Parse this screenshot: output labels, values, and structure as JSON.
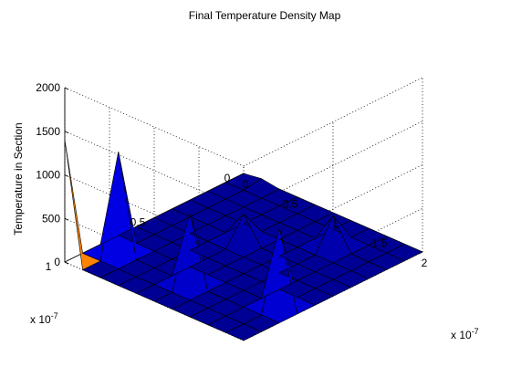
{
  "figure": {
    "background": "#ffffff"
  },
  "chart_data": {
    "type": "surface",
    "title": "Final Temperature Density Map",
    "xlabel": "",
    "ylabel": "",
    "zlabel": "Temperature in Section",
    "x_multiplier": "x 10",
    "x_exponent": "-7",
    "y_multiplier": "x 10",
    "y_exponent": "-7",
    "xlim": [
      0,
      2e-07
    ],
    "ylim": [
      0,
      1e-07
    ],
    "zlim": [
      0,
      2000
    ],
    "x_ticks": [
      0,
      5e-08,
      1e-07,
      1.5e-07,
      2e-07
    ],
    "x_tick_labels": [
      "0",
      "0.5",
      "1",
      "1.5",
      "2"
    ],
    "y_ticks": [
      0,
      5e-08,
      1e-07
    ],
    "y_tick_labels": [
      "0",
      "0.5",
      "1"
    ],
    "z_ticks": [
      0,
      500,
      1000,
      1500,
      2000
    ],
    "z_tick_labels": [
      "0",
      "500",
      "1000",
      "1500",
      "2000"
    ],
    "grid": true,
    "box": false,
    "view": {
      "azimuth_deg": -37.5,
      "elevation_deg": 30
    },
    "colormap": "jet",
    "color_limits": [
      0,
      2000
    ],
    "x": [
      0,
      2e-08,
      4e-08,
      6e-08,
      8e-08,
      1e-07,
      1.2e-07,
      1.4e-07,
      1.6e-07,
      1.8e-07,
      2e-07
    ],
    "y": [
      0,
      1e-08,
      2e-08,
      3e-08,
      4e-08,
      5e-08,
      6e-08,
      7e-08,
      8e-08,
      9e-08,
      1e-07
    ],
    "z": [
      [
        0,
        30,
        0,
        0,
        0,
        0,
        0,
        0,
        0,
        0,
        0
      ],
      [
        0,
        0,
        0,
        0,
        0,
        0,
        0,
        0,
        0,
        0,
        0
      ],
      [
        0,
        0,
        0,
        0,
        0,
        0,
        0,
        350,
        0,
        0,
        0
      ],
      [
        0,
        0,
        0,
        0,
        0,
        0,
        0,
        0,
        0,
        0,
        0
      ],
      [
        0,
        0,
        0,
        0,
        300,
        0,
        0,
        0,
        0,
        0,
        0
      ],
      [
        0,
        0,
        0,
        0,
        0,
        0,
        0,
        0,
        0,
        0,
        0
      ],
      [
        0,
        0,
        0,
        0,
        0,
        0,
        0,
        0,
        0,
        0,
        0
      ],
      [
        0,
        0,
        0,
        0,
        0,
        0,
        0,
        0,
        0,
        900,
        0
      ],
      [
        0,
        1150,
        0,
        0,
        0,
        800,
        0,
        0,
        0,
        0,
        0
      ],
      [
        0,
        0,
        0,
        0,
        0,
        0,
        0,
        0,
        0,
        0,
        0
      ],
      [
        1400,
        0,
        0,
        0,
        0,
        0,
        0,
        0,
        0,
        0,
        0
      ]
    ]
  }
}
